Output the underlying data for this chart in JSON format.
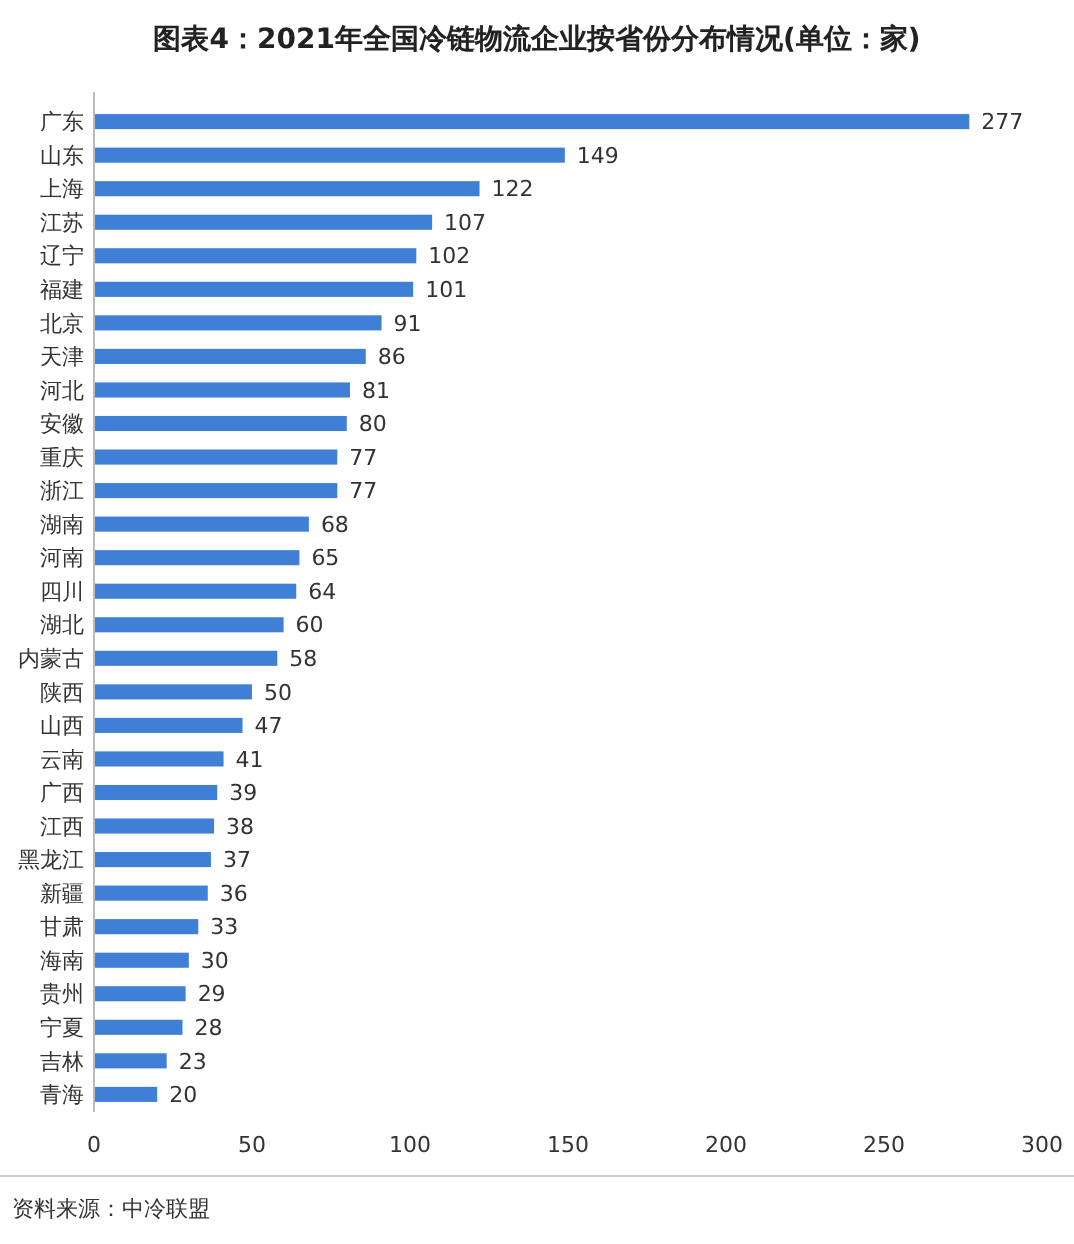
{
  "chart_data": {
    "type": "bar",
    "orientation": "horizontal",
    "title": "图表4：2021年全国冷链物流企业按省份分布情况(单位：家)",
    "categories": [
      "广东",
      "山东",
      "上海",
      "江苏",
      "辽宁",
      "福建",
      "北京",
      "天津",
      "河北",
      "安徽",
      "重庆",
      "浙江",
      "湖南",
      "河南",
      "四川",
      "湖北",
      "内蒙古",
      "陕西",
      "山西",
      "云南",
      "广西",
      "江西",
      "黑龙江",
      "新疆",
      "甘肃",
      "海南",
      "贵州",
      "宁夏",
      "吉林",
      "青海"
    ],
    "values": [
      277,
      149,
      122,
      107,
      102,
      101,
      91,
      86,
      81,
      80,
      77,
      77,
      68,
      65,
      64,
      60,
      58,
      50,
      47,
      41,
      39,
      38,
      37,
      36,
      33,
      30,
      29,
      28,
      23,
      20
    ],
    "color": "#3f7fd6",
    "xlim": [
      0,
      300
    ],
    "xticks": [
      0,
      50,
      100,
      150,
      200,
      250,
      300
    ],
    "grid": false,
    "data_labels": true,
    "annotations": [
      "资料来源：中冷联盟"
    ]
  }
}
